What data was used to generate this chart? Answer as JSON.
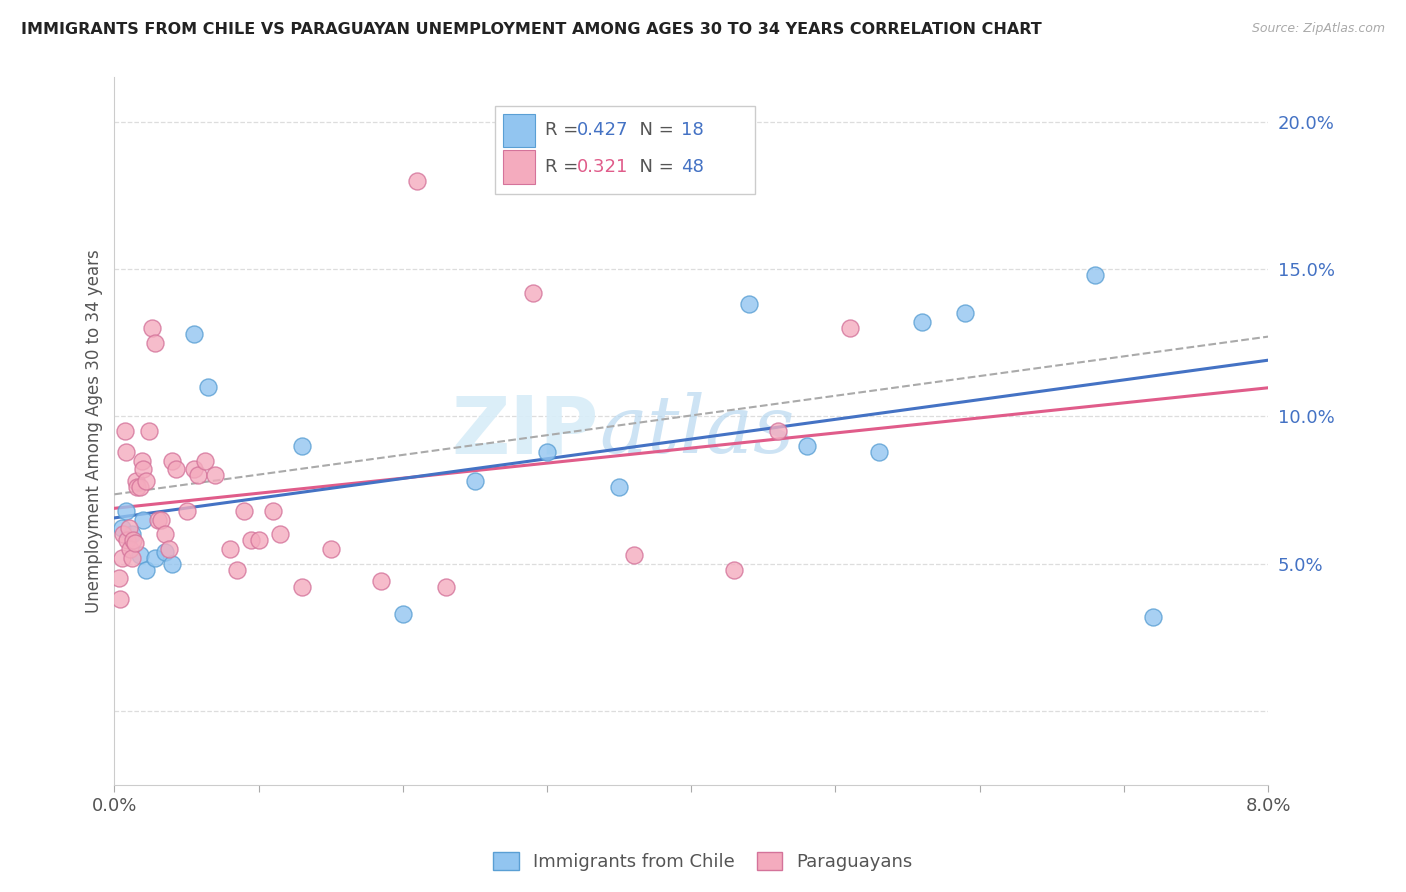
{
  "title": "IMMIGRANTS FROM CHILE VS PARAGUAYAN UNEMPLOYMENT AMONG AGES 30 TO 34 YEARS CORRELATION CHART",
  "source": "Source: ZipAtlas.com",
  "ylabel": "Unemployment Among Ages 30 to 34 years",
  "xlim": [
    0.0,
    0.08
  ],
  "ylim": [
    -0.025,
    0.215
  ],
  "yticks": [
    0.0,
    0.05,
    0.1,
    0.15,
    0.2
  ],
  "ytick_labels": [
    "",
    "5.0%",
    "10.0%",
    "15.0%",
    "20.0%"
  ],
  "xticks": [
    0.0,
    0.01,
    0.02,
    0.03,
    0.04,
    0.05,
    0.06,
    0.07,
    0.08
  ],
  "xtick_labels": [
    "0.0%",
    "",
    "",
    "",
    "",
    "",
    "",
    "",
    "8.0%"
  ],
  "chile_color": "#92C5F0",
  "paraguay_color": "#F4ABBE",
  "chile_edge_color": "#5a9fd4",
  "paraguay_edge_color": "#d4739a",
  "trendline_chile_color": "#4472C4",
  "trendline_paraguay_color": "#E05C8A",
  "trendline_dashed_color": "#aaaaaa",
  "watermark": "ZIPatlas",
  "watermark_color": "#d8edf8",
  "grid_color": "#dddddd",
  "axis_label_color": "#555555",
  "yaxis_tick_color": "#4472C4",
  "title_color": "#222222",
  "source_color": "#aaaaaa",
  "legend_r_color_chile": "#4472C4",
  "legend_r_color_paraguay": "#E05C8A",
  "legend_n_color": "#4472C4",
  "chile_points": [
    [
      0.0005,
      0.062
    ],
    [
      0.0008,
      0.068
    ],
    [
      0.0012,
      0.06
    ],
    [
      0.0018,
      0.053
    ],
    [
      0.002,
      0.065
    ],
    [
      0.0022,
      0.048
    ],
    [
      0.0028,
      0.052
    ],
    [
      0.0035,
      0.054
    ],
    [
      0.004,
      0.05
    ],
    [
      0.0055,
      0.128
    ],
    [
      0.0065,
      0.11
    ],
    [
      0.013,
      0.09
    ],
    [
      0.02,
      0.033
    ],
    [
      0.025,
      0.078
    ],
    [
      0.03,
      0.088
    ],
    [
      0.035,
      0.076
    ],
    [
      0.044,
      0.138
    ],
    [
      0.048,
      0.09
    ],
    [
      0.053,
      0.088
    ],
    [
      0.056,
      0.132
    ],
    [
      0.059,
      0.135
    ],
    [
      0.068,
      0.148
    ],
    [
      0.072,
      0.032
    ]
  ],
  "paraguay_points": [
    [
      0.0003,
      0.045
    ],
    [
      0.0004,
      0.038
    ],
    [
      0.0005,
      0.052
    ],
    [
      0.0006,
      0.06
    ],
    [
      0.0007,
      0.095
    ],
    [
      0.0008,
      0.088
    ],
    [
      0.0009,
      0.058
    ],
    [
      0.001,
      0.062
    ],
    [
      0.0011,
      0.055
    ],
    [
      0.0012,
      0.052
    ],
    [
      0.0013,
      0.058
    ],
    [
      0.0014,
      0.057
    ],
    [
      0.0015,
      0.078
    ],
    [
      0.0016,
      0.076
    ],
    [
      0.0018,
      0.076
    ],
    [
      0.0019,
      0.085
    ],
    [
      0.002,
      0.082
    ],
    [
      0.0022,
      0.078
    ],
    [
      0.0024,
      0.095
    ],
    [
      0.0026,
      0.13
    ],
    [
      0.0028,
      0.125
    ],
    [
      0.003,
      0.065
    ],
    [
      0.0032,
      0.065
    ],
    [
      0.0035,
      0.06
    ],
    [
      0.0038,
      0.055
    ],
    [
      0.004,
      0.085
    ],
    [
      0.0043,
      0.082
    ],
    [
      0.005,
      0.068
    ],
    [
      0.0055,
      0.082
    ],
    [
      0.0058,
      0.08
    ],
    [
      0.0063,
      0.085
    ],
    [
      0.007,
      0.08
    ],
    [
      0.008,
      0.055
    ],
    [
      0.0085,
      0.048
    ],
    [
      0.009,
      0.068
    ],
    [
      0.0095,
      0.058
    ],
    [
      0.01,
      0.058
    ],
    [
      0.011,
      0.068
    ],
    [
      0.0115,
      0.06
    ],
    [
      0.013,
      0.042
    ],
    [
      0.015,
      0.055
    ],
    [
      0.0185,
      0.044
    ],
    [
      0.021,
      0.18
    ],
    [
      0.023,
      0.042
    ],
    [
      0.029,
      0.142
    ],
    [
      0.036,
      0.053
    ],
    [
      0.043,
      0.048
    ],
    [
      0.046,
      0.095
    ],
    [
      0.051,
      0.13
    ]
  ],
  "trendline_x_start": 0.0,
  "trendline_x_end": 0.08
}
